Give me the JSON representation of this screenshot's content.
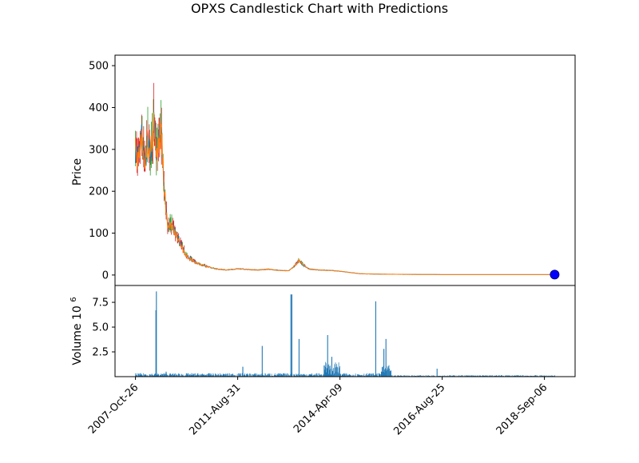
{
  "chart_data": {
    "type": "candlestick",
    "title": "OPXS Candlestick Chart with Predictions",
    "price_panel": {
      "ylabel": "Price",
      "ylim": [
        -25,
        525
      ],
      "yticks": [
        0,
        100,
        200,
        300,
        400,
        500
      ],
      "series_colors": {
        "up": "#2ca02c",
        "down": "#d62728",
        "close_line": "#ff7f0e",
        "open_line": "#1f77b4"
      },
      "price_path": [
        {
          "t": 0.0,
          "v": 300
        },
        {
          "t": 0.3,
          "v": 270
        },
        {
          "t": 0.6,
          "v": 330
        },
        {
          "t": 0.9,
          "v": 260
        },
        {
          "t": 1.2,
          "v": 320
        },
        {
          "t": 1.5,
          "v": 290
        },
        {
          "t": 1.8,
          "v": 360
        },
        {
          "t": 2.1,
          "v": 280
        },
        {
          "t": 2.4,
          "v": 350
        },
        {
          "t": 2.6,
          "v": 310
        },
        {
          "t": 2.8,
          "v": 200
        },
        {
          "t": 3.0,
          "v": 160
        },
        {
          "t": 3.2,
          "v": 110
        },
        {
          "t": 3.5,
          "v": 120
        },
        {
          "t": 4.0,
          "v": 95
        },
        {
          "t": 4.5,
          "v": 70
        },
        {
          "t": 5.0,
          "v": 45
        },
        {
          "t": 6.0,
          "v": 28
        },
        {
          "t": 7.0,
          "v": 20
        },
        {
          "t": 8.0,
          "v": 14
        },
        {
          "t": 9.0,
          "v": 12
        },
        {
          "t": 10.0,
          "v": 15
        },
        {
          "t": 11.0,
          "v": 13
        },
        {
          "t": 12.0,
          "v": 12
        },
        {
          "t": 13.0,
          "v": 14
        },
        {
          "t": 14.0,
          "v": 11
        },
        {
          "t": 15.0,
          "v": 10
        },
        {
          "t": 15.5,
          "v": 20
        },
        {
          "t": 16.0,
          "v": 35
        },
        {
          "t": 16.5,
          "v": 22
        },
        {
          "t": 17.0,
          "v": 14
        },
        {
          "t": 18.0,
          "v": 12
        },
        {
          "t": 19.0,
          "v": 11
        },
        {
          "t": 20.0,
          "v": 9
        },
        {
          "t": 21.0,
          "v": 6
        },
        {
          "t": 22.0,
          "v": 3
        },
        {
          "t": 24.0,
          "v": 2
        },
        {
          "t": 30.0,
          "v": 1
        },
        {
          "t": 41.0,
          "v": 1
        }
      ],
      "prediction": {
        "t": 41.0,
        "v": 1,
        "color": "#0000ff"
      }
    },
    "volume_panel": {
      "ylabel": "Volume",
      "ylabel_exponent": "10",
      "ylabel_power": "6",
      "ylim": [
        0,
        9.2
      ],
      "yticks": [
        "2.5",
        "5.0",
        "7.5"
      ],
      "ytick_values": [
        2.5,
        5.0,
        7.5
      ],
      "bar_color": "#1f77b4",
      "spikes": [
        {
          "t": 2.0,
          "v": 6.7
        },
        {
          "t": 2.05,
          "v": 8.6
        },
        {
          "t": 3.0,
          "v": 0.5
        },
        {
          "t": 10.5,
          "v": 1.0
        },
        {
          "t": 12.4,
          "v": 3.1
        },
        {
          "t": 15.2,
          "v": 8.3
        },
        {
          "t": 15.3,
          "v": 8.3
        },
        {
          "t": 16.0,
          "v": 3.8
        },
        {
          "t": 18.8,
          "v": 4.2
        },
        {
          "t": 19.2,
          "v": 2.0
        },
        {
          "t": 23.5,
          "v": 7.6
        },
        {
          "t": 24.5,
          "v": 3.8
        },
        {
          "t": 24.3,
          "v": 2.8
        },
        {
          "t": 29.5,
          "v": 0.8
        }
      ]
    },
    "x_axis": {
      "tick_labels": [
        "2007-Oct-26",
        "2011-Aug-31",
        "2014-Apr-09",
        "2016-Aug-25",
        "2018-Sep-06"
      ],
      "tick_positions": [
        0,
        10,
        20,
        30,
        40
      ],
      "xlim": [
        -2,
        43
      ]
    }
  }
}
